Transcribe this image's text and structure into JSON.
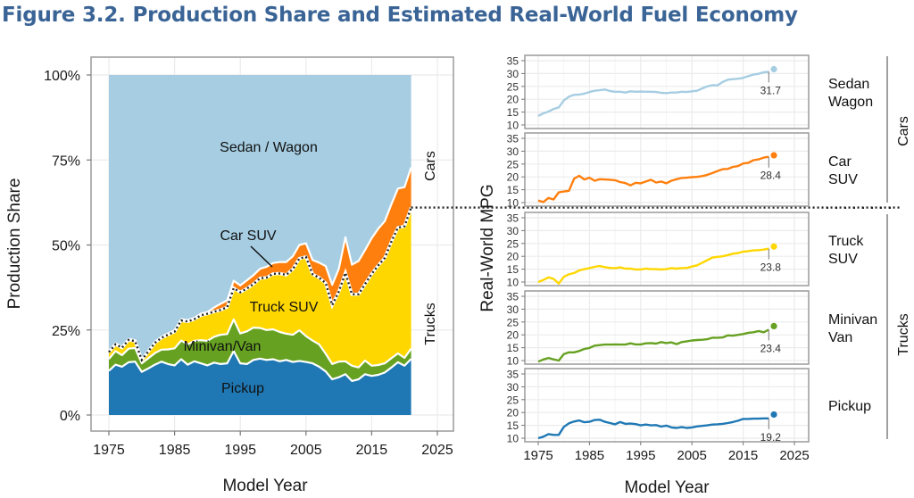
{
  "figure_title": "Figure 3.2. Production Share and Estimated Real-World Fuel Economy",
  "colors": {
    "sedan_wagon": "#a6cde2",
    "car_suv": "#ff7f0e",
    "truck_suv": "#ffd700",
    "minivan_van": "#66a121",
    "pickup": "#1f78b4",
    "title": "#3a6496"
  },
  "chart_data": [
    {
      "type": "area",
      "title": "",
      "xlabel": "Model Year",
      "ylabel": "Production Share",
      "xlim": [
        1973,
        2028
      ],
      "ylim": [
        -5,
        104
      ],
      "x_ticks": [
        1975,
        1985,
        1995,
        2005,
        2015,
        2025
      ],
      "x_tick_labels": [
        "1975",
        "1985",
        "1995",
        "2005",
        "2015",
        "2025"
      ],
      "y_ticks": [
        0,
        25,
        50,
        75,
        100
      ],
      "y_tick_labels": [
        "0%",
        "25%",
        "50%",
        "75%",
        "100%"
      ],
      "grid": true,
      "stacked": true,
      "x": [
        1975,
        1976,
        1977,
        1978,
        1979,
        1980,
        1981,
        1982,
        1983,
        1984,
        1985,
        1986,
        1987,
        1988,
        1989,
        1990,
        1991,
        1992,
        1993,
        1994,
        1995,
        1996,
        1997,
        1998,
        1999,
        2000,
        2001,
        2002,
        2003,
        2004,
        2005,
        2006,
        2007,
        2008,
        2009,
        2010,
        2011,
        2012,
        2013,
        2014,
        2015,
        2016,
        2017,
        2018,
        2019,
        2020,
        2021
      ],
      "series": [
        {
          "name": "Pickup",
          "values": [
            13.0,
            14.8,
            14.2,
            15.5,
            15.7,
            12.7,
            13.7,
            14.8,
            15.7,
            15.0,
            14.6,
            16.4,
            14.8,
            15.8,
            15.2,
            14.6,
            15.4,
            15.0,
            15.2,
            18.8,
            15.2,
            15.0,
            16.2,
            16.6,
            16.2,
            16.4,
            15.8,
            16.2,
            15.6,
            15.9,
            15.6,
            15.2,
            14.2,
            12.8,
            10.5,
            11.1,
            12.0,
            10.0,
            10.5,
            12.0,
            11.5,
            11.8,
            12.5,
            14.0,
            15.5,
            14.5,
            16.5
          ]
        },
        {
          "name": "Minivan/Van",
          "values": [
            3.5,
            4.0,
            3.4,
            4.0,
            4.0,
            2.5,
            3.0,
            3.4,
            3.5,
            4.3,
            5.0,
            5.5,
            6.0,
            6.0,
            6.8,
            7.2,
            7.6,
            8.6,
            8.6,
            9.3,
            8.8,
            9.6,
            9.5,
            9.0,
            8.8,
            8.8,
            8.6,
            7.7,
            8.0,
            9.0,
            7.6,
            6.7,
            6.6,
            5.2,
            4.5,
            4.6,
            3.8,
            4.5,
            3.5,
            4.0,
            3.0,
            2.9,
            2.7,
            2.7,
            2.6,
            2.3,
            3.0
          ]
        },
        {
          "name": "Truck SUV",
          "values": [
            2.0,
            2.0,
            2.2,
            2.6,
            2.0,
            1.0,
            2.0,
            3.0,
            3.5,
            4.3,
            4.9,
            5.9,
            6.7,
            6.4,
            7.3,
            8.0,
            7.4,
            7.3,
            7.9,
            9.2,
            12.1,
            12.6,
            12.8,
            14.6,
            15.4,
            16.3,
            17.2,
            17.3,
            19.3,
            21.1,
            23.3,
            19.5,
            19.6,
            20.8,
            17.3,
            20.6,
            26.0,
            21.0,
            21.5,
            22.5,
            27.0,
            29.3,
            31.0,
            34.3,
            37.0,
            38.7,
            41.5
          ]
        },
        {
          "name": "Car SUV",
          "values": [
            0.3,
            0.3,
            0.3,
            0.3,
            0.3,
            0.2,
            0.2,
            0.3,
            0.3,
            0.4,
            0.4,
            0.4,
            0.4,
            0.4,
            0.5,
            0.5,
            1.2,
            1.8,
            2.0,
            2.2,
            2.0,
            2.4,
            2.6,
            2.8,
            3.2,
            3.2,
            3.4,
            3.8,
            3.8,
            4.0,
            4.0,
            4.2,
            4.4,
            5.0,
            6.0,
            6.7,
            10.5,
            8.7,
            9.8,
            10.0,
            10.5,
            10.8,
            10.8,
            11.0,
            11.5,
            11.5,
            11.8
          ]
        },
        {
          "name": "Sedan/Wagon",
          "values": [
            81.2,
            78.9,
            79.9,
            77.6,
            78.0,
            83.6,
            81.1,
            78.5,
            77.0,
            76.0,
            75.1,
            71.8,
            72.1,
            71.4,
            70.2,
            69.7,
            68.4,
            67.3,
            66.3,
            60.5,
            61.9,
            60.4,
            58.9,
            57.0,
            56.4,
            55.3,
            55.0,
            55.0,
            53.3,
            50.0,
            49.5,
            54.4,
            55.2,
            56.2,
            61.7,
            57.0,
            47.7,
            55.8,
            54.7,
            51.5,
            48.0,
            45.2,
            43.0,
            38.0,
            33.4,
            33.0,
            27.2
          ]
        }
      ],
      "series_labels": [
        "Pickup",
        "Minivan/Van",
        "Truck SUV",
        "Car SUV",
        "Sedan / Wagon"
      ],
      "facet_labels": {
        "cars": "Cars",
        "trucks": "Trucks"
      },
      "divider": "dotted car/truck boundary line"
    },
    {
      "type": "line",
      "xlabel": "Model Year",
      "ylabel": "Real-World MPG",
      "xlim": [
        1973,
        2028
      ],
      "ylim": [
        9,
        36
      ],
      "x_ticks": [
        1975,
        1985,
        1995,
        2005,
        2015,
        2025
      ],
      "x_tick_labels": [
        "1975",
        "1985",
        "1995",
        "2005",
        "2015",
        "2025"
      ],
      "y_ticks": [
        10,
        15,
        20,
        25,
        30,
        35
      ],
      "y_tick_labels": [
        "10",
        "15",
        "20",
        "25",
        "30",
        "35"
      ],
      "grid": true,
      "x": [
        1975,
        1976,
        1977,
        1978,
        1979,
        1980,
        1981,
        1982,
        1983,
        1984,
        1985,
        1986,
        1987,
        1988,
        1989,
        1990,
        1991,
        1992,
        1993,
        1994,
        1995,
        1996,
        1997,
        1998,
        1999,
        2000,
        2001,
        2002,
        2003,
        2004,
        2005,
        2006,
        2007,
        2008,
        2009,
        2010,
        2011,
        2012,
        2013,
        2014,
        2015,
        2016,
        2017,
        2018,
        2019,
        2020
      ],
      "panels": [
        {
          "name": "Sedan Wagon",
          "label_lines": [
            "Sedan",
            "Wagon"
          ],
          "group": "Cars",
          "values": [
            13.5,
            14.5,
            15.2,
            16.2,
            16.8,
            19.5,
            21.0,
            21.7,
            21.8,
            22.2,
            22.8,
            23.3,
            23.5,
            23.8,
            23.2,
            22.9,
            22.9,
            22.6,
            23.1,
            22.9,
            23.0,
            22.9,
            22.9,
            22.8,
            22.5,
            22.4,
            22.6,
            22.6,
            22.9,
            22.8,
            23.1,
            23.3,
            24.2,
            25.0,
            25.5,
            25.4,
            26.7,
            27.6,
            27.8,
            28.0,
            28.3,
            29.0,
            29.6,
            29.9,
            30.5,
            30.7
          ],
          "projected_year": 2021,
          "projected_value": 31.7,
          "value_label": "31.7"
        },
        {
          "name": "Car SUV",
          "label_lines": [
            "Car",
            "SUV"
          ],
          "group": "Cars",
          "values": [
            10.8,
            10.2,
            11.8,
            11.2,
            14.0,
            14.3,
            14.6,
            19.3,
            20.4,
            19.0,
            19.7,
            18.5,
            19.1,
            19.0,
            18.9,
            18.7,
            18.0,
            17.6,
            16.7,
            17.7,
            17.5,
            18.2,
            18.9,
            17.8,
            18.2,
            17.5,
            18.5,
            19.1,
            19.6,
            19.7,
            19.9,
            20.0,
            20.3,
            20.8,
            21.5,
            22.3,
            23.0,
            23.1,
            23.9,
            24.2,
            25.2,
            25.5,
            26.5,
            26.8,
            27.5,
            27.8
          ],
          "projected_year": 2021,
          "projected_value": 28.4,
          "value_label": "28.4"
        },
        {
          "name": "Truck SUV",
          "label_lines": [
            "Truck",
            "SUV"
          ],
          "group": "Trucks",
          "values": [
            10.0,
            10.8,
            11.8,
            11.2,
            9.4,
            12.0,
            13.0,
            13.5,
            14.5,
            15.0,
            15.4,
            15.9,
            16.2,
            15.8,
            15.5,
            15.4,
            15.7,
            15.2,
            15.2,
            14.9,
            14.9,
            15.2,
            15.0,
            15.0,
            14.9,
            15.0,
            15.4,
            15.2,
            15.4,
            15.5,
            16.0,
            16.5,
            17.5,
            18.5,
            19.5,
            19.8,
            20.0,
            20.5,
            21.0,
            21.3,
            21.8,
            22.0,
            22.3,
            22.4,
            22.6,
            23.0
          ],
          "projected_year": 2021,
          "projected_value": 23.8,
          "value_label": "23.8"
        },
        {
          "name": "Minivan Van",
          "label_lines": [
            "Minivan",
            "Van"
          ],
          "group": "Trucks",
          "values": [
            9.6,
            10.4,
            11.0,
            10.5,
            10.0,
            12.5,
            13.2,
            13.2,
            13.7,
            14.5,
            14.9,
            15.8,
            16.0,
            16.2,
            16.2,
            16.3,
            16.2,
            16.2,
            16.7,
            16.3,
            16.3,
            16.7,
            16.8,
            16.6,
            17.2,
            16.8,
            17.1,
            16.4,
            17.2,
            17.5,
            17.8,
            18.0,
            18.1,
            18.3,
            18.9,
            18.9,
            19.0,
            19.8,
            19.7,
            20.0,
            20.3,
            20.8,
            21.0,
            21.5,
            21.0,
            22.0
          ],
          "projected_year": 2021,
          "projected_value": 23.4,
          "value_label": "23.4"
        },
        {
          "name": "Pickup",
          "label_lines": [
            "Pickup"
          ],
          "group": "Trucks",
          "values": [
            10.0,
            10.6,
            11.6,
            11.3,
            11.3,
            14.4,
            15.8,
            16.5,
            16.9,
            16.2,
            16.4,
            17.1,
            17.2,
            16.4,
            15.9,
            15.4,
            16.3,
            15.6,
            15.7,
            15.5,
            15.0,
            15.3,
            15.0,
            15.1,
            14.5,
            14.9,
            14.2,
            14.0,
            14.3,
            14.0,
            14.2,
            14.6,
            14.8,
            15.0,
            15.3,
            15.4,
            15.6,
            15.9,
            16.3,
            16.8,
            17.5,
            17.5,
            17.6,
            17.6,
            17.7,
            17.7
          ],
          "projected_year": 2021,
          "projected_value": 19.2,
          "value_label": "19.2"
        }
      ],
      "group_labels": {
        "cars": "Cars",
        "trucks": "Trucks"
      }
    }
  ]
}
